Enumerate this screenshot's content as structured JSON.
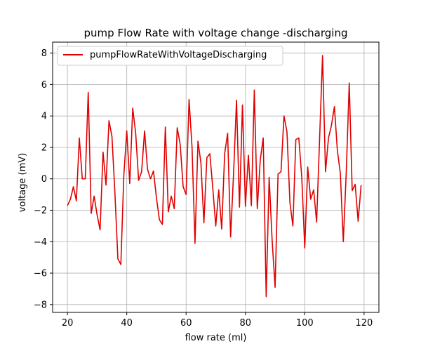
{
  "chart_data": {
    "type": "line",
    "title": "pump Flow Rate with voltage change -discharging",
    "xlabel": "flow rate (ml)",
    "ylabel": "voltage (mV)",
    "xlim": [
      15,
      125
    ],
    "ylim": [
      -8.5,
      8.7
    ],
    "xticks": [
      20,
      40,
      60,
      80,
      100,
      120
    ],
    "yticks": [
      -8,
      -6,
      -4,
      -2,
      0,
      2,
      4,
      6,
      8
    ],
    "ytick_labels": [
      "−8",
      "−6",
      "−4",
      "−2",
      "0",
      "2",
      "4",
      "6",
      "8"
    ],
    "grid": true,
    "legend_position": "top-left",
    "series": [
      {
        "name": "pumpFlowRateWithVoltageDischarging",
        "color": "#e00000",
        "x": [
          20,
          21,
          22,
          23,
          24,
          25,
          26,
          27,
          28,
          29,
          30,
          31,
          32,
          33,
          34,
          35,
          36,
          37,
          38,
          39,
          40,
          41,
          42,
          43,
          44,
          45,
          46,
          47,
          48,
          49,
          50,
          51,
          52,
          53,
          54,
          55,
          56,
          57,
          58,
          59,
          60,
          61,
          62,
          63,
          64,
          65,
          66,
          67,
          68,
          69,
          70,
          71,
          72,
          73,
          74,
          75,
          76,
          77,
          78,
          79,
          80,
          81,
          82,
          83,
          84,
          85,
          86,
          87,
          88,
          89,
          90,
          91,
          92,
          93,
          94,
          95,
          96,
          97,
          98,
          99,
          100,
          101,
          102,
          103,
          104,
          105,
          106,
          107,
          108,
          109,
          110,
          111,
          112,
          113,
          114,
          115,
          116,
          117,
          118,
          119
        ],
        "y": [
          -1.7,
          -1.3,
          -0.5,
          -1.4,
          2.6,
          0.0,
          0.0,
          5.5,
          -2.2,
          -1.1,
          -2.3,
          -3.25,
          1.7,
          -0.4,
          3.7,
          2.7,
          -0.9,
          -5.1,
          -5.45,
          0.2,
          3.05,
          -0.3,
          4.5,
          2.9,
          -0.1,
          0.45,
          3.05,
          0.6,
          0.0,
          0.5,
          -1.2,
          -2.6,
          -2.9,
          3.3,
          -2.1,
          -1.1,
          -1.9,
          3.25,
          2.2,
          -0.5,
          -1.0,
          5.05,
          2.0,
          -4.1,
          2.4,
          1.0,
          -2.8,
          1.35,
          1.6,
          -0.6,
          -3.0,
          -0.7,
          -3.2,
          1.6,
          2.9,
          -3.7,
          0.3,
          5.0,
          -1.8,
          4.7,
          -1.75,
          1.5,
          -1.7,
          5.65,
          -1.9,
          1.2,
          2.6,
          -7.5,
          0.1,
          -3.9,
          -6.9,
          0.3,
          0.45,
          4.0,
          3.0,
          -1.5,
          -3.0,
          2.5,
          2.6,
          0.1,
          -4.4,
          0.75,
          -1.3,
          -0.7,
          -2.75,
          2.5,
          7.85,
          0.45,
          2.6,
          3.4,
          4.6,
          1.8,
          0.35,
          -4.0,
          0.45,
          6.1,
          -0.75,
          -0.35,
          -2.7,
          -0.4
        ]
      }
    ]
  }
}
